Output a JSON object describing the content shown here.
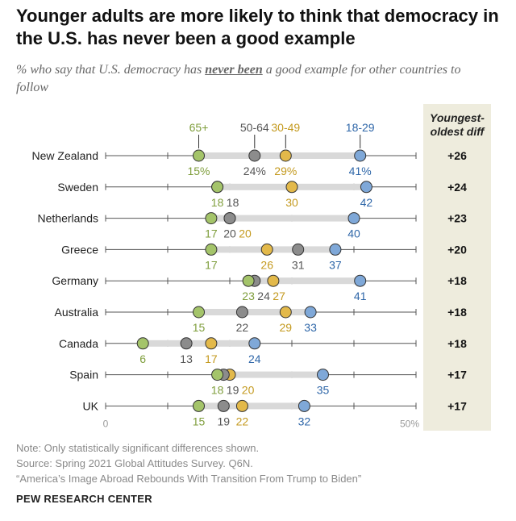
{
  "header": {
    "title": "Younger adults are more likely to think that democracy in the U.S. has never been a good example",
    "subtitle_pre": "% who say that U.S. democracy has ",
    "subtitle_emph": "never been",
    "subtitle_post": " a good example for other countries to follow"
  },
  "diff_header": "Youngest-oldest diff",
  "notes": {
    "note": "Note: Only statistically significant differences shown.",
    "source": "Source: Spring 2021 Global Attitudes Survey. Q6N.",
    "report": "“America’s Image Abroad Rebounds With Transition From Trump to Biden”"
  },
  "brand": "PEW RESEARCH CENTER",
  "colors": {
    "65+": "#a4c46a",
    "50-64": "#8c8c8c",
    "30-49": "#e3b94a",
    "18-29": "#7fa8d8",
    "65+_text": "#7f9e3c",
    "50-64_text": "#555555",
    "30-49_text": "#c49a1f",
    "18-29_text": "#2e66a8",
    "range_bar": "#d9d9d9"
  },
  "chart_data": {
    "type": "dot",
    "title": "Younger adults are more likely to think that democracy in the U.S. has never been a good example",
    "axis_min_label": "0",
    "axis_max_label": "50%",
    "xlim": [
      0,
      50
    ],
    "series_order": [
      "65+",
      "50-64",
      "30-49",
      "18-29"
    ],
    "series": [
      {
        "name": "65+"
      },
      {
        "name": "50-64"
      },
      {
        "name": "30-49"
      },
      {
        "name": "18-29"
      }
    ],
    "rows": [
      {
        "country": "New Zealand",
        "values": {
          "65+": 15,
          "50-64": 24,
          "30-49": 29,
          "18-29": 41
        },
        "labels": {
          "65+": "15%",
          "50-64": "24%",
          "30-49": "29%",
          "18-29": "41%"
        },
        "diff": "+26"
      },
      {
        "country": "Sweden",
        "values": {
          "65+": 18,
          "50-64": 18,
          "30-49": 30,
          "18-29": 42
        },
        "labels": {
          "65+": "18",
          "50-64": "18",
          "30-49": "30",
          "18-29": "42"
        },
        "diff": "+24"
      },
      {
        "country": "Netherlands",
        "values": {
          "65+": 17,
          "50-64": 20,
          "30-49": 20,
          "18-29": 40
        },
        "labels": {
          "65+": "17",
          "50-64": "20",
          "30-49": "20",
          "18-29": "40"
        },
        "diff": "+23"
      },
      {
        "country": "Greece",
        "values": {
          "65+": 17,
          "50-64": 31,
          "30-49": 26,
          "18-29": 37
        },
        "labels": {
          "65+": "17",
          "50-64": "31",
          "30-49": "26",
          "18-29": "37"
        },
        "diff": "+20"
      },
      {
        "country": "Germany",
        "values": {
          "65+": 23,
          "50-64": 24,
          "30-49": 27,
          "18-29": 41
        },
        "labels": {
          "65+": "23",
          "50-64": "24",
          "30-49": "27",
          "18-29": "41"
        },
        "diff": "+18"
      },
      {
        "country": "Australia",
        "values": {
          "65+": 15,
          "50-64": 22,
          "30-49": 29,
          "18-29": 33
        },
        "labels": {
          "65+": "15",
          "50-64": "22",
          "30-49": "29",
          "18-29": "33"
        },
        "diff": "+18"
      },
      {
        "country": "Canada",
        "values": {
          "65+": 6,
          "50-64": 13,
          "30-49": 17,
          "18-29": 24
        },
        "labels": {
          "65+": "6",
          "50-64": "13",
          "30-49": "17",
          "18-29": "24"
        },
        "diff": "+18"
      },
      {
        "country": "Spain",
        "values": {
          "65+": 18,
          "50-64": 19,
          "30-49": 20,
          "18-29": 35
        },
        "labels": {
          "65+": "18",
          "50-64": "19",
          "30-49": "20",
          "18-29": "35"
        },
        "diff": "+17"
      },
      {
        "country": "UK",
        "values": {
          "65+": 15,
          "50-64": 19,
          "30-49": 22,
          "18-29": 32
        },
        "labels": {
          "65+": "15",
          "50-64": "19",
          "30-49": "22",
          "18-29": "32"
        },
        "diff": "+17"
      }
    ]
  }
}
